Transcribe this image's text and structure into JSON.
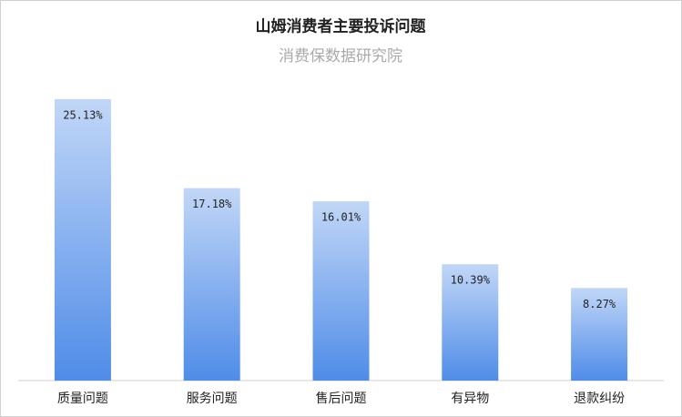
{
  "chart_data": {
    "type": "bar",
    "title": "山姆消费者主要投诉问题",
    "subtitle": "消费保数据研究院",
    "categories": [
      "质量问题",
      "服务问题",
      "售后问题",
      "有异物",
      "退款纠纷"
    ],
    "values": [
      25.13,
      17.18,
      16.01,
      10.39,
      8.27
    ],
    "value_labels": [
      "25.13%",
      "17.18%",
      "16.01%",
      "10.39%",
      "8.27%"
    ],
    "color": "#4f8ce8"
  }
}
